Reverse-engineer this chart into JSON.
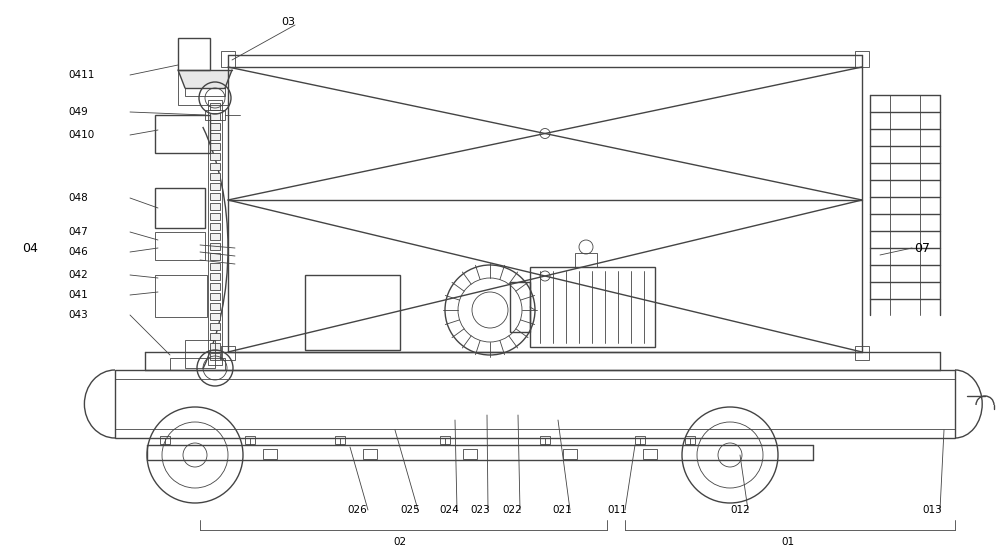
{
  "bg_color": "#ffffff",
  "lc": "#444444",
  "lw": 1.0,
  "tlw": 0.6,
  "fs": 8.0
}
